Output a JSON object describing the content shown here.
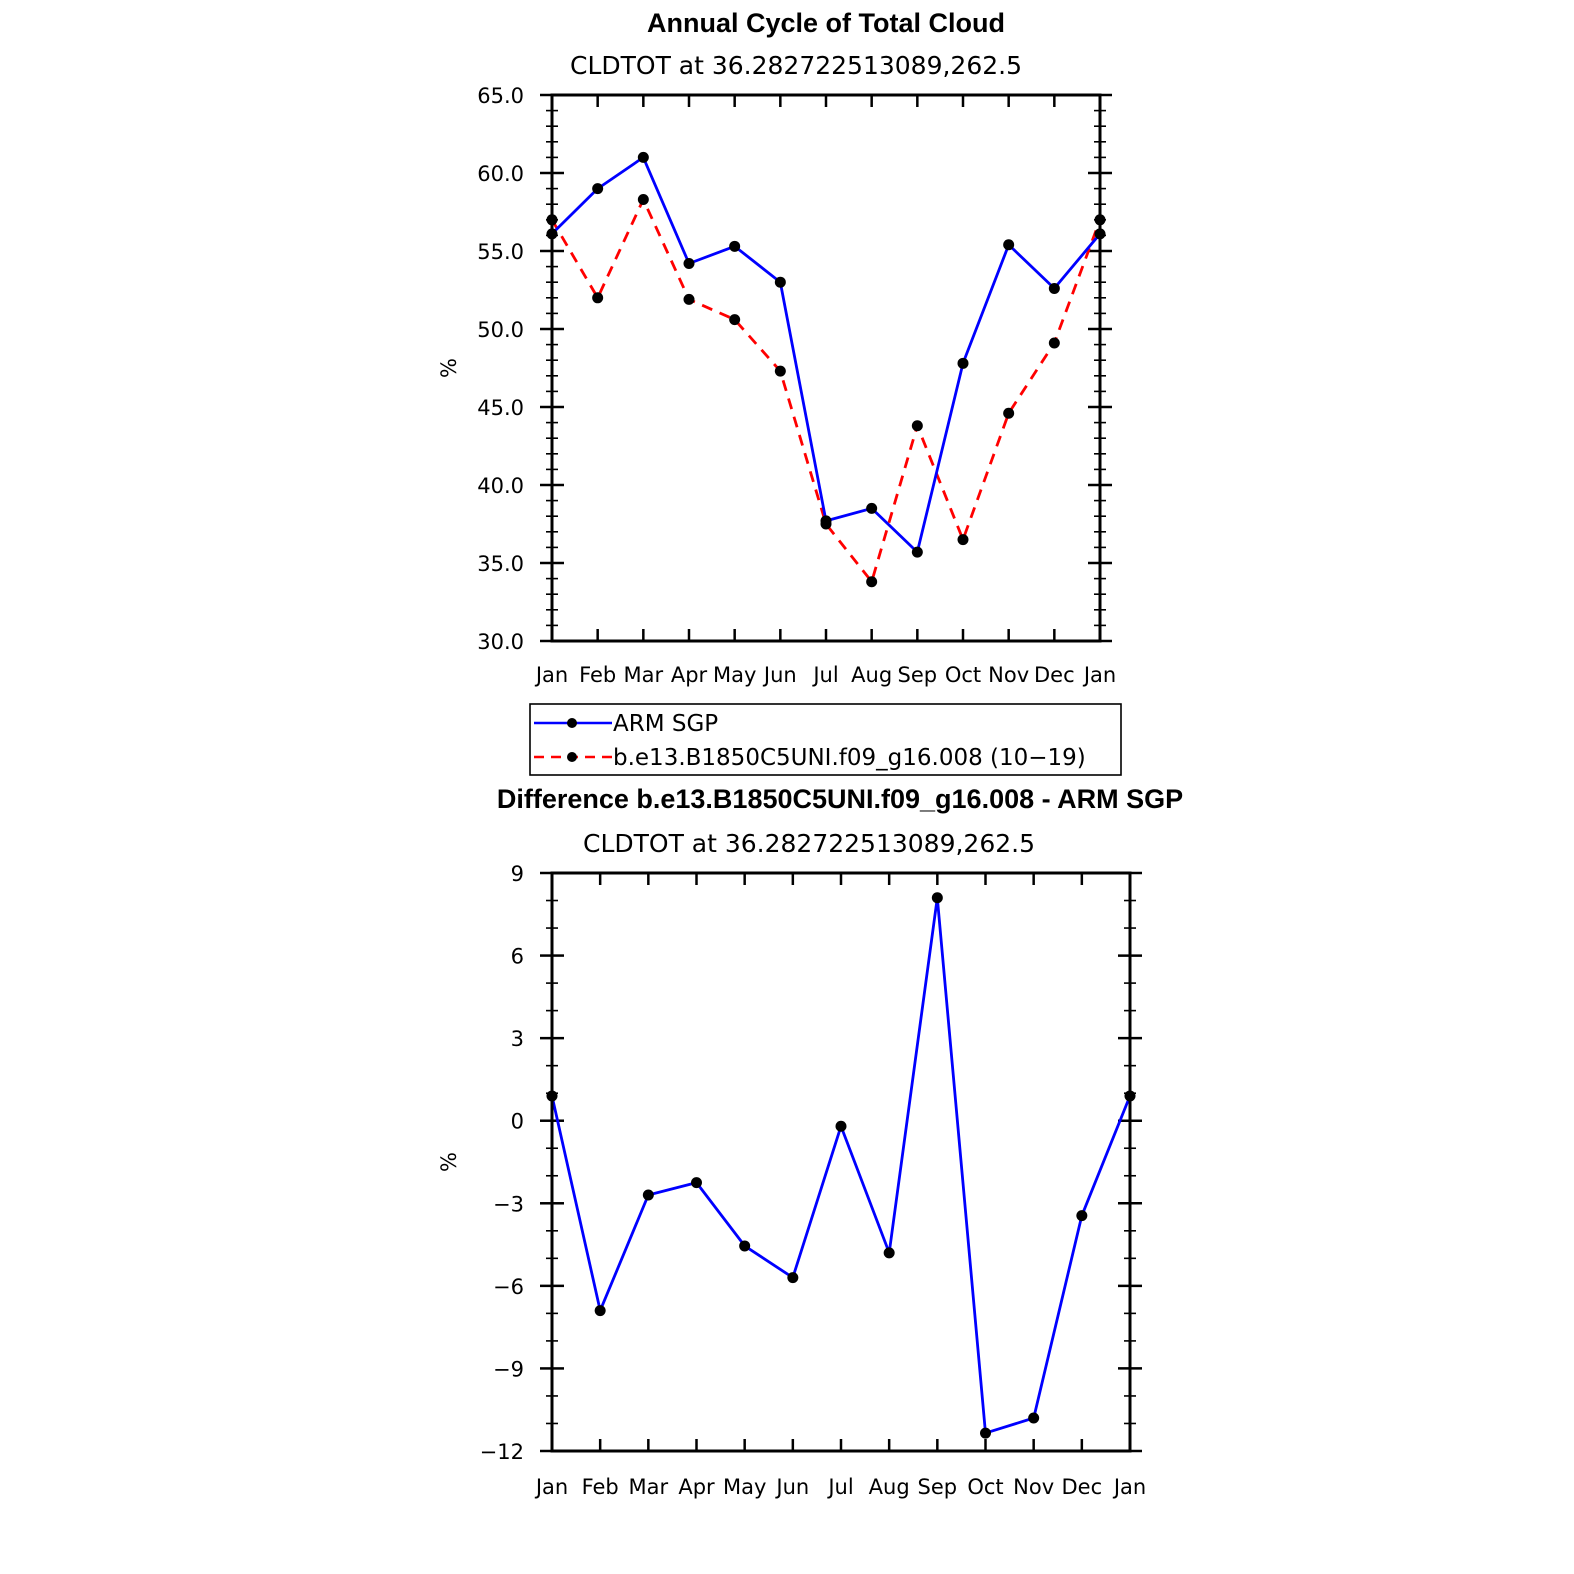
{
  "chart_data": [
    {
      "type": "line",
      "title": "Annual Cycle of Total Cloud",
      "subtitle": "CLDTOT at 36.282722513089,262.5",
      "xlabel": "",
      "ylabel": "%",
      "categories": [
        "Jan",
        "Feb",
        "Mar",
        "Apr",
        "May",
        "Jun",
        "Jul",
        "Aug",
        "Sep",
        "Oct",
        "Nov",
        "Dec",
        "Jan"
      ],
      "ylim": [
        30.0,
        65.0
      ],
      "yticks": [
        "30.0",
        "35.0",
        "40.0",
        "45.0",
        "50.0",
        "55.0",
        "60.0",
        "65.0"
      ],
      "grid": false,
      "legend_position": "below",
      "series": [
        {
          "name": "ARM SGP",
          "color": "#0000ff",
          "style": "solid",
          "marker": "dot",
          "values": [
            56.1,
            59.0,
            61.0,
            54.2,
            55.3,
            53.0,
            37.7,
            38.5,
            35.7,
            47.8,
            55.4,
            52.6,
            56.1
          ]
        },
        {
          "name": "b.e13.B1850C5UNI.f09_g16.008 (10−19)",
          "color": "#ff0000",
          "style": "dashed",
          "marker": "dot",
          "values": [
            57.0,
            52.0,
            58.3,
            51.9,
            50.6,
            47.3,
            37.5,
            33.8,
            43.8,
            36.5,
            44.6,
            49.1,
            57.0
          ]
        }
      ]
    },
    {
      "type": "line",
      "title": "Difference b.e13.B1850C5UNI.f09_g16.008 - ARM SGP",
      "subtitle": "CLDTOT at 36.282722513089,262.5",
      "xlabel": "",
      "ylabel": "%",
      "categories": [
        "Jan",
        "Feb",
        "Mar",
        "Apr",
        "May",
        "Jun",
        "Jul",
        "Aug",
        "Sep",
        "Oct",
        "Nov",
        "Dec",
        "Jan"
      ],
      "ylim": [
        -12,
        9
      ],
      "yticks": [
        "−12",
        "−9",
        "−6",
        "−3",
        "0",
        "3",
        "6",
        "9"
      ],
      "grid": false,
      "series": [
        {
          "name": "",
          "color": "#0000ff",
          "style": "solid",
          "marker": "dot",
          "values": [
            0.9,
            -6.9,
            -2.7,
            -2.25,
            -4.55,
            -5.7,
            -0.2,
            -4.8,
            8.1,
            -11.35,
            -10.8,
            -3.45,
            0.9
          ]
        }
      ]
    }
  ]
}
